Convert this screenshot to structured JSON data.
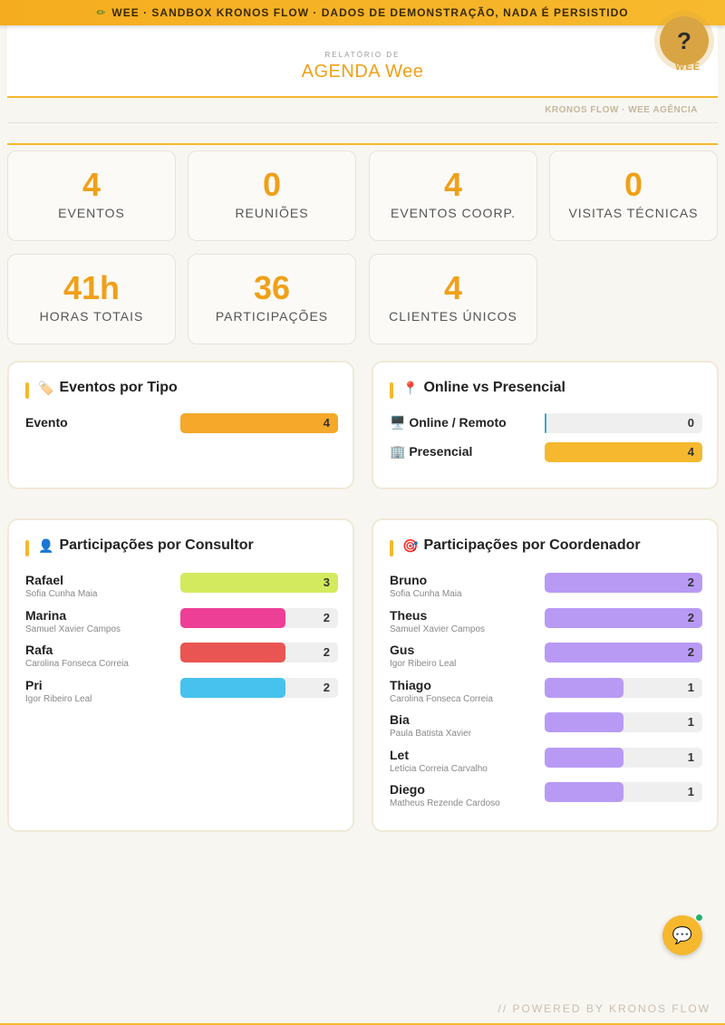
{
  "banner": {
    "text": "WEE · SANDBOX KRONOS FLOW · DADOS DE DEMONSTRAÇÃO, NADA É PERSISTIDO",
    "icon": "pencil-icon"
  },
  "header": {
    "kicker": "RELATÓRIO DE",
    "title": "AGENDA Wee",
    "help_symbol": "?",
    "help_label": "WEE"
  },
  "subbar": {
    "text": "KRONOS FLOW · WEE AGÊNCIA"
  },
  "stats": [
    {
      "value": "4",
      "label": "EVENTOS"
    },
    {
      "value": "0",
      "label": "REUNIÕES"
    },
    {
      "value": "4",
      "label": "EVENTOS COORP."
    },
    {
      "value": "0",
      "label": "VISITAS TÉCNICAS"
    },
    {
      "value": "41h",
      "label": "HORAS TOTAIS"
    },
    {
      "value": "36",
      "label": "PARTICIPAÇÕES"
    },
    {
      "value": "4",
      "label": "CLIENTES ÚNICOS"
    }
  ],
  "panels": {
    "tipo": {
      "title": "Eventos por Tipo",
      "icon": "tag-icon",
      "max": 4,
      "rows": [
        {
          "name": "Evento",
          "value": 4,
          "color": "#f5a82a"
        }
      ]
    },
    "modo": {
      "title": "Online vs Presencial",
      "icon": "pin-icon",
      "max": 4,
      "rows": [
        {
          "name": "🖥️ Online / Remoto",
          "value": 0,
          "color": "#3ea6c8"
        },
        {
          "name": "🏢 Presencial",
          "value": 4,
          "color": "#f5b82e"
        }
      ]
    },
    "consultor": {
      "title": "Participações por Consultor",
      "icon": "person-icon",
      "max": 3,
      "rows": [
        {
          "name": "Rafael",
          "sub": "Sofia Cunha Maia",
          "value": 3,
          "color": "#d4ea5e"
        },
        {
          "name": "Marina",
          "sub": "Samuel Xavier Campos",
          "value": 2,
          "color": "#ec3f95"
        },
        {
          "name": "Rafa",
          "sub": "Carolina Fonseca Correia",
          "value": 2,
          "color": "#e85552"
        },
        {
          "name": "Pri",
          "sub": "Igor Ribeiro Leal",
          "value": 2,
          "color": "#47c2ee"
        }
      ]
    },
    "coordenador": {
      "title": "Participações por Coordenador",
      "icon": "target-icon",
      "max": 2,
      "rows": [
        {
          "name": "Bruno",
          "sub": "Sofia Cunha Maia",
          "value": 2,
          "color": "#b89af5"
        },
        {
          "name": "Theus",
          "sub": "Samuel Xavier Campos",
          "value": 2,
          "color": "#b89af5"
        },
        {
          "name": "Gus",
          "sub": "Igor Ribeiro Leal",
          "value": 2,
          "color": "#b89af5"
        },
        {
          "name": "Thiago",
          "sub": "Carolina Fonseca Correia",
          "value": 1,
          "color": "#b89af5"
        },
        {
          "name": "Bia",
          "sub": "Paula Batista Xavier",
          "value": 1,
          "color": "#b89af5"
        },
        {
          "name": "Let",
          "sub": "Letícia Correia Carvalho",
          "value": 1,
          "color": "#b89af5"
        },
        {
          "name": "Diego",
          "sub": "Matheus Rezende Cardoso",
          "value": 1,
          "color": "#b89af5"
        }
      ]
    }
  },
  "footer": {
    "text": "// POWERED BY KRONOS FLOW"
  },
  "chat": {
    "icon": "chat-bubble-icon"
  }
}
